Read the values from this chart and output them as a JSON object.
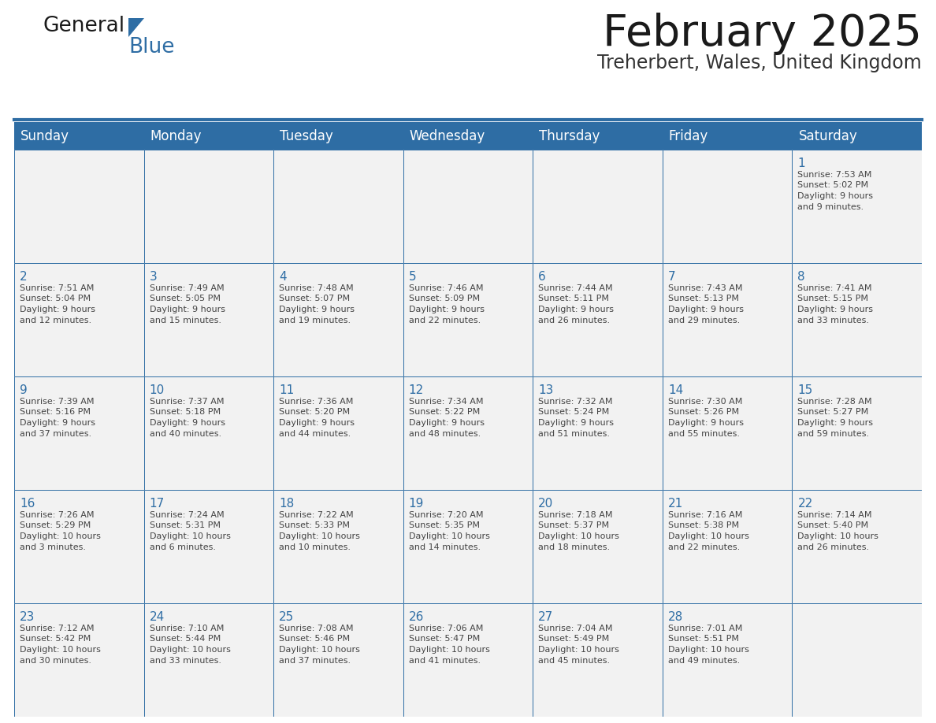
{
  "title": "February 2025",
  "subtitle": "Treherbert, Wales, United Kingdom",
  "header_bg_color": "#2E6DA4",
  "header_text_color": "#FFFFFF",
  "cell_bg_even": "#F2F2F2",
  "cell_bg_odd": "#FFFFFF",
  "cell_border_color": "#2E6DA4",
  "day_num_color": "#2E6DA4",
  "text_color": "#444444",
  "bg_color": "#FFFFFF",
  "logo_text_color": "#1a1a1a",
  "logo_blue_color": "#2E6DA4",
  "days_of_week": [
    "Sunday",
    "Monday",
    "Tuesday",
    "Wednesday",
    "Thursday",
    "Friday",
    "Saturday"
  ],
  "calendar": [
    [
      null,
      null,
      null,
      null,
      null,
      null,
      1
    ],
    [
      2,
      3,
      4,
      5,
      6,
      7,
      8
    ],
    [
      9,
      10,
      11,
      12,
      13,
      14,
      15
    ],
    [
      16,
      17,
      18,
      19,
      20,
      21,
      22
    ],
    [
      23,
      24,
      25,
      26,
      27,
      28,
      null
    ]
  ],
  "cell_data": {
    "1": {
      "sunrise": "7:53 AM",
      "sunset": "5:02 PM",
      "daylight_hours": 9,
      "daylight_minutes": 9
    },
    "2": {
      "sunrise": "7:51 AM",
      "sunset": "5:04 PM",
      "daylight_hours": 9,
      "daylight_minutes": 12
    },
    "3": {
      "sunrise": "7:49 AM",
      "sunset": "5:05 PM",
      "daylight_hours": 9,
      "daylight_minutes": 15
    },
    "4": {
      "sunrise": "7:48 AM",
      "sunset": "5:07 PM",
      "daylight_hours": 9,
      "daylight_minutes": 19
    },
    "5": {
      "sunrise": "7:46 AM",
      "sunset": "5:09 PM",
      "daylight_hours": 9,
      "daylight_minutes": 22
    },
    "6": {
      "sunrise": "7:44 AM",
      "sunset": "5:11 PM",
      "daylight_hours": 9,
      "daylight_minutes": 26
    },
    "7": {
      "sunrise": "7:43 AM",
      "sunset": "5:13 PM",
      "daylight_hours": 9,
      "daylight_minutes": 29
    },
    "8": {
      "sunrise": "7:41 AM",
      "sunset": "5:15 PM",
      "daylight_hours": 9,
      "daylight_minutes": 33
    },
    "9": {
      "sunrise": "7:39 AM",
      "sunset": "5:16 PM",
      "daylight_hours": 9,
      "daylight_minutes": 37
    },
    "10": {
      "sunrise": "7:37 AM",
      "sunset": "5:18 PM",
      "daylight_hours": 9,
      "daylight_minutes": 40
    },
    "11": {
      "sunrise": "7:36 AM",
      "sunset": "5:20 PM",
      "daylight_hours": 9,
      "daylight_minutes": 44
    },
    "12": {
      "sunrise": "7:34 AM",
      "sunset": "5:22 PM",
      "daylight_hours": 9,
      "daylight_minutes": 48
    },
    "13": {
      "sunrise": "7:32 AM",
      "sunset": "5:24 PM",
      "daylight_hours": 9,
      "daylight_minutes": 51
    },
    "14": {
      "sunrise": "7:30 AM",
      "sunset": "5:26 PM",
      "daylight_hours": 9,
      "daylight_minutes": 55
    },
    "15": {
      "sunrise": "7:28 AM",
      "sunset": "5:27 PM",
      "daylight_hours": 9,
      "daylight_minutes": 59
    },
    "16": {
      "sunrise": "7:26 AM",
      "sunset": "5:29 PM",
      "daylight_hours": 10,
      "daylight_minutes": 3
    },
    "17": {
      "sunrise": "7:24 AM",
      "sunset": "5:31 PM",
      "daylight_hours": 10,
      "daylight_minutes": 6
    },
    "18": {
      "sunrise": "7:22 AM",
      "sunset": "5:33 PM",
      "daylight_hours": 10,
      "daylight_minutes": 10
    },
    "19": {
      "sunrise": "7:20 AM",
      "sunset": "5:35 PM",
      "daylight_hours": 10,
      "daylight_minutes": 14
    },
    "20": {
      "sunrise": "7:18 AM",
      "sunset": "5:37 PM",
      "daylight_hours": 10,
      "daylight_minutes": 18
    },
    "21": {
      "sunrise": "7:16 AM",
      "sunset": "5:38 PM",
      "daylight_hours": 10,
      "daylight_minutes": 22
    },
    "22": {
      "sunrise": "7:14 AM",
      "sunset": "5:40 PM",
      "daylight_hours": 10,
      "daylight_minutes": 26
    },
    "23": {
      "sunrise": "7:12 AM",
      "sunset": "5:42 PM",
      "daylight_hours": 10,
      "daylight_minutes": 30
    },
    "24": {
      "sunrise": "7:10 AM",
      "sunset": "5:44 PM",
      "daylight_hours": 10,
      "daylight_minutes": 33
    },
    "25": {
      "sunrise": "7:08 AM",
      "sunset": "5:46 PM",
      "daylight_hours": 10,
      "daylight_minutes": 37
    },
    "26": {
      "sunrise": "7:06 AM",
      "sunset": "5:47 PM",
      "daylight_hours": 10,
      "daylight_minutes": 41
    },
    "27": {
      "sunrise": "7:04 AM",
      "sunset": "5:49 PM",
      "daylight_hours": 10,
      "daylight_minutes": 45
    },
    "28": {
      "sunrise": "7:01 AM",
      "sunset": "5:51 PM",
      "daylight_hours": 10,
      "daylight_minutes": 49
    }
  }
}
